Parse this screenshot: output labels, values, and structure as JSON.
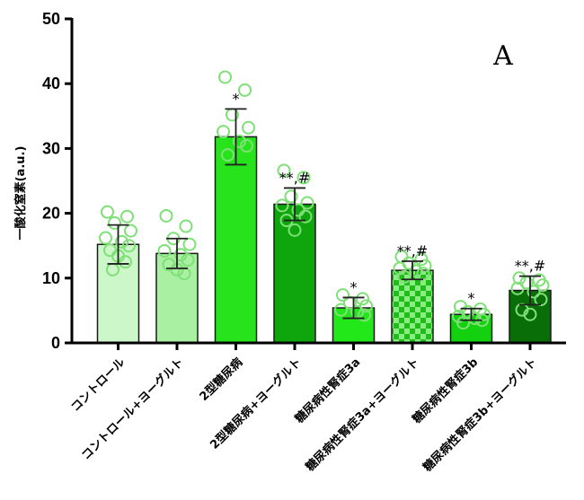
{
  "chart_data": {
    "type": "bar",
    "panel_label": "A",
    "ylabel": "一酸化窒素(a.u.)",
    "ylim": [
      0,
      50
    ],
    "yticks": [
      0,
      10,
      20,
      30,
      40,
      50
    ],
    "categories": [
      "コントロール",
      "コントロール+ヨーグルト",
      "2型糖尿病",
      "2型糖尿病+ヨーグルト",
      "糖尿病性腎症3a",
      "糖尿病性腎症3a+ヨーグルト",
      "糖尿病性腎症3b",
      "糖尿病性腎症3b+ヨーグルト"
    ],
    "values": [
      15.2,
      13.8,
      31.8,
      21.4,
      5.4,
      11.2,
      4.4,
      8.1
    ],
    "errors": [
      3.0,
      2.3,
      4.3,
      2.5,
      1.6,
      1.4,
      0.9,
      2.2
    ],
    "significance": [
      "",
      "",
      "*",
      "**,#",
      "*",
      "**,#",
      "*",
      "**,#"
    ],
    "points": [
      [
        20.2,
        19.5,
        18.5,
        17.3,
        16.2,
        15.6,
        15.0,
        14.3,
        13.4,
        12.5,
        11.3
      ],
      [
        19.6,
        18.0,
        16.1,
        15.2,
        14.2,
        13.6,
        12.8,
        12.1,
        11.3,
        10.7
      ],
      [
        41.0,
        39.0,
        35.2,
        33.2,
        32.6,
        31.1,
        30.4,
        29.0
      ],
      [
        26.6,
        25.5,
        22.6,
        21.6,
        21.2,
        20.5,
        19.5,
        18.9,
        17.4
      ],
      [
        7.4,
        6.8,
        6.2,
        5.7,
        5.1,
        4.8,
        4.3
      ],
      [
        13.3,
        12.9,
        12.3,
        11.9,
        11.5,
        11.1,
        10.7,
        10.2
      ],
      [
        5.6,
        5.2,
        4.8,
        4.4,
        4.1,
        3.8,
        3.5,
        3.1
      ],
      [
        10.0,
        9.7,
        9.3,
        8.9,
        8.4,
        7.9,
        6.7,
        5.1,
        4.4
      ]
    ],
    "colors": {
      "bars": [
        "#ccf7c8",
        "#a9f0a3",
        "#26e31c",
        "#0ea60c",
        "#22e81a",
        "#20bd1a",
        "#13d10f",
        "#0a6e08"
      ],
      "checkered": [
        false,
        false,
        false,
        false,
        false,
        true,
        false,
        false
      ],
      "checker_alt": "#8aed82",
      "points": "#7fe077"
    }
  }
}
